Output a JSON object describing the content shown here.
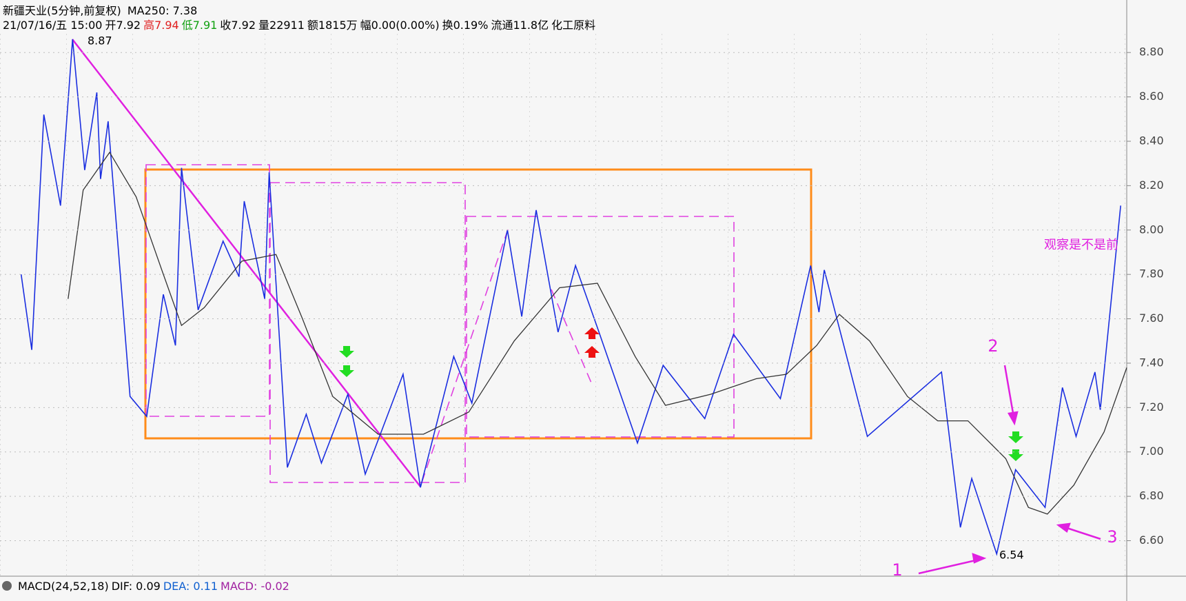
{
  "chart_data": {
    "type": "line",
    "title": "新疆天业(5分钟,前复权)",
    "indicator_label": "MA250: 7.38",
    "info": [
      {
        "text": "21/07/16/五 15:00",
        "color": "#000000"
      },
      {
        "text": "开7.92",
        "color": "#000000"
      },
      {
        "text": "高7.94",
        "color": "#e02020"
      },
      {
        "text": "低7.91",
        "color": "#10a010"
      },
      {
        "text": "收7.92",
        "color": "#000000"
      },
      {
        "text": "量22911",
        "color": "#000000"
      },
      {
        "text": "额1815万",
        "color": "#000000"
      },
      {
        "text": "幅0.00(0.00%)",
        "color": "#000000"
      },
      {
        "text": "换0.19%",
        "color": "#000000"
      },
      {
        "text": "流通11.8亿",
        "color": "#000000"
      },
      {
        "text": "化工原料",
        "color": "#000000"
      }
    ],
    "macd_header": [
      {
        "text": "MACD(24,52,18)",
        "color": "#000000"
      },
      {
        "text": "DIF: 0.09",
        "color": "#000000"
      },
      {
        "text": "DEA: 0.11",
        "color": "#1060d0"
      },
      {
        "text": "MACD: -0.02",
        "color": "#a020a0"
      }
    ],
    "annotations": [
      {
        "text": "8.87",
        "color": "#000000"
      },
      {
        "text": "6.54",
        "color": "#000000"
      },
      {
        "text": "观察是不是前",
        "color": "#e020e0"
      },
      {
        "text": "1",
        "color": "#e020e0"
      },
      {
        "text": "2",
        "color": "#e020e0"
      },
      {
        "text": "3",
        "color": "#e020e0"
      }
    ],
    "xlim": [
      0,
      745
    ],
    "ylim": [
      6.44,
      8.9
    ],
    "yticks": [
      {
        "value": 6.6,
        "label": "6.60"
      },
      {
        "value": 6.8,
        "label": "6.80"
      },
      {
        "value": 7.0,
        "label": "7.00"
      },
      {
        "value": 7.2,
        "label": "7.20"
      },
      {
        "value": 7.4,
        "label": "7.40"
      },
      {
        "value": 7.6,
        "label": "7.60"
      },
      {
        "value": 7.8,
        "label": "7.80"
      },
      {
        "value": 8.0,
        "label": "8.00"
      },
      {
        "value": 8.2,
        "label": "8.20"
      },
      {
        "value": 8.4,
        "label": "8.40"
      },
      {
        "value": 8.6,
        "label": "8.60"
      },
      {
        "value": 8.8,
        "label": "8.80"
      }
    ],
    "grid": true,
    "series": [
      {
        "color": "#1a2ee0",
        "x": [
          14,
          21,
          29,
          40,
          48,
          56,
          64,
          66.5,
          71.5,
          86,
          97,
          108,
          116,
          120,
          131,
          147.5,
          158,
          161.5,
          175,
          178,
          190,
          202.5,
          212.5,
          230,
          241.5,
          251.5,
          266.5,
          278,
          300,
          312,
          335.5,
          345,
          354.5,
          369,
          380.5,
          395,
          421.5,
          438.5,
          466,
          485,
          516,
          536,
          541.5,
          545,
          573.5,
          622.5,
          635,
          642.5,
          659,
          671.5,
          691,
          702.5,
          711.5,
          724,
          727.5,
          741
        ],
        "values": [
          7.8,
          7.46,
          8.52,
          8.11,
          8.86,
          8.27,
          8.62,
          8.23,
          8.49,
          7.25,
          7.16,
          7.71,
          7.48,
          8.28,
          7.64,
          7.95,
          7.79,
          8.13,
          7.69,
          8.26,
          6.93,
          7.17,
          6.95,
          7.26,
          6.9,
          7.08,
          7.35,
          6.84,
          7.43,
          7.22,
          8.0,
          7.61,
          8.09,
          7.54,
          7.84,
          7.56,
          7.04,
          7.39,
          7.15,
          7.53,
          7.24,
          7.84,
          7.63,
          7.82,
          7.07,
          7.36,
          6.66,
          6.88,
          6.54,
          6.92,
          6.75,
          7.29,
          7.07,
          7.36,
          7.19,
          8.11
        ]
      },
      {
        "color": "#333333",
        "x": [
          45,
          55,
          72.5,
          90,
          107.5,
          120,
          135,
          160,
          182.5,
          200,
          220,
          250,
          280,
          310,
          340,
          370,
          395,
          420,
          440,
          470,
          500,
          520,
          540,
          555,
          575,
          600,
          620,
          640,
          665,
          680,
          692.5,
          710,
          730,
          745
        ],
        "values": [
          7.69,
          8.18,
          8.35,
          8.15,
          7.81,
          7.57,
          7.65,
          7.86,
          7.89,
          7.6,
          7.25,
          7.08,
          7.08,
          7.18,
          7.5,
          7.74,
          7.76,
          7.43,
          7.21,
          7.26,
          7.33,
          7.35,
          7.48,
          7.62,
          7.5,
          7.25,
          7.14,
          7.14,
          6.97,
          6.75,
          6.72,
          6.85,
          7.09,
          7.38
        ]
      }
    ]
  }
}
